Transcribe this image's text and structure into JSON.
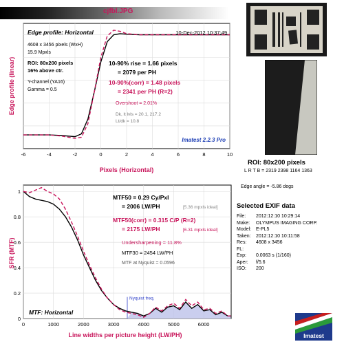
{
  "file_title": "cjfbl.JPG",
  "roi_panel": {
    "label": "ROI: 80x200 pixels",
    "lrtb": "L R T B = 2319 2398 1164 1363",
    "edge_angle": "Edge angle = -5.86 degs"
  },
  "exif": {
    "title": "Selected EXIF data",
    "rows": [
      {
        "k": "File:",
        "v": "2012:12:10 10:29:14"
      },
      {
        "k": "Make:",
        "v": "OLYMPUS IMAGING CORP."
      },
      {
        "k": "Model:",
        "v": "E-PL5"
      },
      {
        "k": "Taken:",
        "v": "2012:12:10 10:11:58"
      },
      {
        "k": "Res:",
        "v": "4608 x 3456"
      },
      {
        "k": "FL:",
        "v": ""
      },
      {
        "k": "Exp:",
        "v": "0.0063 s (1/160)"
      },
      {
        "k": "Aper:",
        "v": "f/5.6"
      },
      {
        "k": "ISO:",
        "v": "200"
      }
    ]
  },
  "logo_text": "Imatest",
  "chart_data": [
    {
      "type": "line",
      "title": "Edge profile: Horizontal",
      "timestamp": "10-Dec-2012 10:37:49",
      "xlabel": "Pixels (Horizontal)",
      "ylabel": "Edge profile (linear)",
      "xlim": [
        -6,
        10
      ],
      "ylim": [
        0,
        1.1
      ],
      "grid": true,
      "xticks": [
        -6,
        -4,
        -2,
        0,
        2,
        4,
        6,
        8,
        10
      ],
      "info_black": [
        "4608 x 3456 pixels (WxH)",
        "15.9 Mpxls"
      ],
      "info_bold": [
        "ROI: 80x200 pixels",
        "16% above ctr."
      ],
      "info_misc": [
        "Y-channel  (YA16)",
        "Gamma = 0.5"
      ],
      "rise_line1": "10-90% rise = 1.66 pixels",
      "rise_line2": "= 2079 per PH",
      "corr_line1": "10-90%(corr) = 1.48 pixels",
      "corr_line2": "= 2341 per PH  (R=2)",
      "overshoot": "Overshoot = 2.01%",
      "dk_lt": "Dk, lt lvls = 20.1, 217.2",
      "lt_dk": "Lt/dk = 10.8",
      "version": "Imatest 2.2.3 Pro",
      "series": [
        {
          "style": "solid",
          "color": "#000000",
          "x": [
            -6,
            -5,
            -4,
            -3,
            -2.5,
            -2,
            -1.5,
            -1,
            -0.5,
            0,
            0.5,
            1,
            1.5,
            2,
            3,
            4,
            5,
            6,
            7,
            8,
            9,
            10
          ],
          "y": [
            0.12,
            0.12,
            0.12,
            0.115,
            0.11,
            0.105,
            0.13,
            0.26,
            0.5,
            0.76,
            0.94,
            1.0,
            1.01,
            1.005,
            1.0,
            1.0,
            1.0,
            1.0,
            1.0,
            1.0,
            1.0,
            1.0
          ]
        },
        {
          "style": "dashed",
          "color": "#c8145a",
          "x": [
            -6,
            -5,
            -4,
            -3,
            -2.5,
            -2,
            -1.5,
            -1,
            -0.5,
            0,
            0.5,
            1,
            1.5,
            2,
            3,
            4,
            5,
            6,
            7,
            8,
            9,
            10
          ],
          "y": [
            0.12,
            0.12,
            0.12,
            0.11,
            0.1,
            0.09,
            0.1,
            0.22,
            0.5,
            0.8,
            0.99,
            1.04,
            1.03,
            1.01,
            1.0,
            1.0,
            1.0,
            1.0,
            1.0,
            1.0,
            1.0,
            1.0
          ]
        }
      ]
    },
    {
      "type": "line",
      "title": "MTF: Horizontal",
      "xlabel": "Line widths per picture height (LW/PH)",
      "ylabel": "SFR (MTF)",
      "xlim": [
        0,
        6912
      ],
      "ylim": [
        0,
        1.05
      ],
      "grid": true,
      "xticks": [
        0,
        1000,
        2000,
        3000,
        4000,
        5000,
        6000
      ],
      "yticks": [
        0,
        0.2,
        0.4,
        0.6,
        0.8,
        1
      ],
      "mtf50_line1": "MTF50 = 0.29 Cy/Pxl",
      "mtf50_line2": "= 2006 LW/PH",
      "mtf50_ideal": "[5.36 mpxls ideal]",
      "mtf50c_line1": "MTF50(corr) = 0.315 C/P  (R=2)",
      "mtf50c_line2": "= 2175 LW/PH",
      "mtf50c_ideal": "[6.31 mpxls ideal]",
      "undersharpening": "Undersharpening = 11.8%",
      "mtf30": "MTF30 = 2454 LW/PH",
      "mtf_nyquist": "MTF at Nyquist = 0.0596",
      "nyquist_label": "Nyquist freq.",
      "nyquist_x": 3456,
      "series": [
        {
          "style": "solid",
          "color": "#000000",
          "x": [
            0,
            200,
            400,
            600,
            800,
            1000,
            1200,
            1400,
            1600,
            1800,
            2000,
            2200,
            2400,
            2600,
            2800,
            3000,
            3200,
            3400,
            3600,
            3800,
            4000,
            4200,
            4400,
            4600,
            4800,
            5000,
            5200,
            5400,
            5600,
            5800,
            6000,
            6200,
            6400,
            6600,
            6800,
            6900
          ],
          "y": [
            1.0,
            0.96,
            0.94,
            0.93,
            0.92,
            0.9,
            0.86,
            0.8,
            0.72,
            0.62,
            0.5,
            0.4,
            0.3,
            0.22,
            0.16,
            0.11,
            0.08,
            0.06,
            0.05,
            0.04,
            0.02,
            0.04,
            0.08,
            0.05,
            0.09,
            0.1,
            0.07,
            0.13,
            0.08,
            0.11,
            0.06,
            0.07,
            0.03,
            0.05,
            0.02,
            0.02
          ]
        },
        {
          "style": "dashed",
          "color": "#c8145a",
          "x": [
            0,
            200,
            400,
            600,
            800,
            1000,
            1200,
            1400,
            1600,
            1800,
            2000,
            2200,
            2400,
            2600,
            2800,
            3000,
            3200,
            3400,
            3600,
            3800,
            4000,
            4200,
            4400,
            4600,
            4800,
            5000,
            5200,
            5400,
            5600,
            5800,
            6000,
            6200,
            6400,
            6600,
            6800,
            6900
          ],
          "y": [
            1.0,
            0.99,
            1.01,
            1.03,
            1.0,
            0.98,
            0.94,
            0.86,
            0.76,
            0.65,
            0.53,
            0.42,
            0.32,
            0.23,
            0.16,
            0.11,
            0.07,
            0.05,
            0.04,
            0.03,
            0.01,
            0.04,
            0.09,
            0.06,
            0.1,
            0.12,
            0.08,
            0.15,
            0.1,
            0.13,
            0.07,
            0.08,
            0.04,
            0.06,
            0.02,
            0.02
          ]
        }
      ]
    }
  ]
}
